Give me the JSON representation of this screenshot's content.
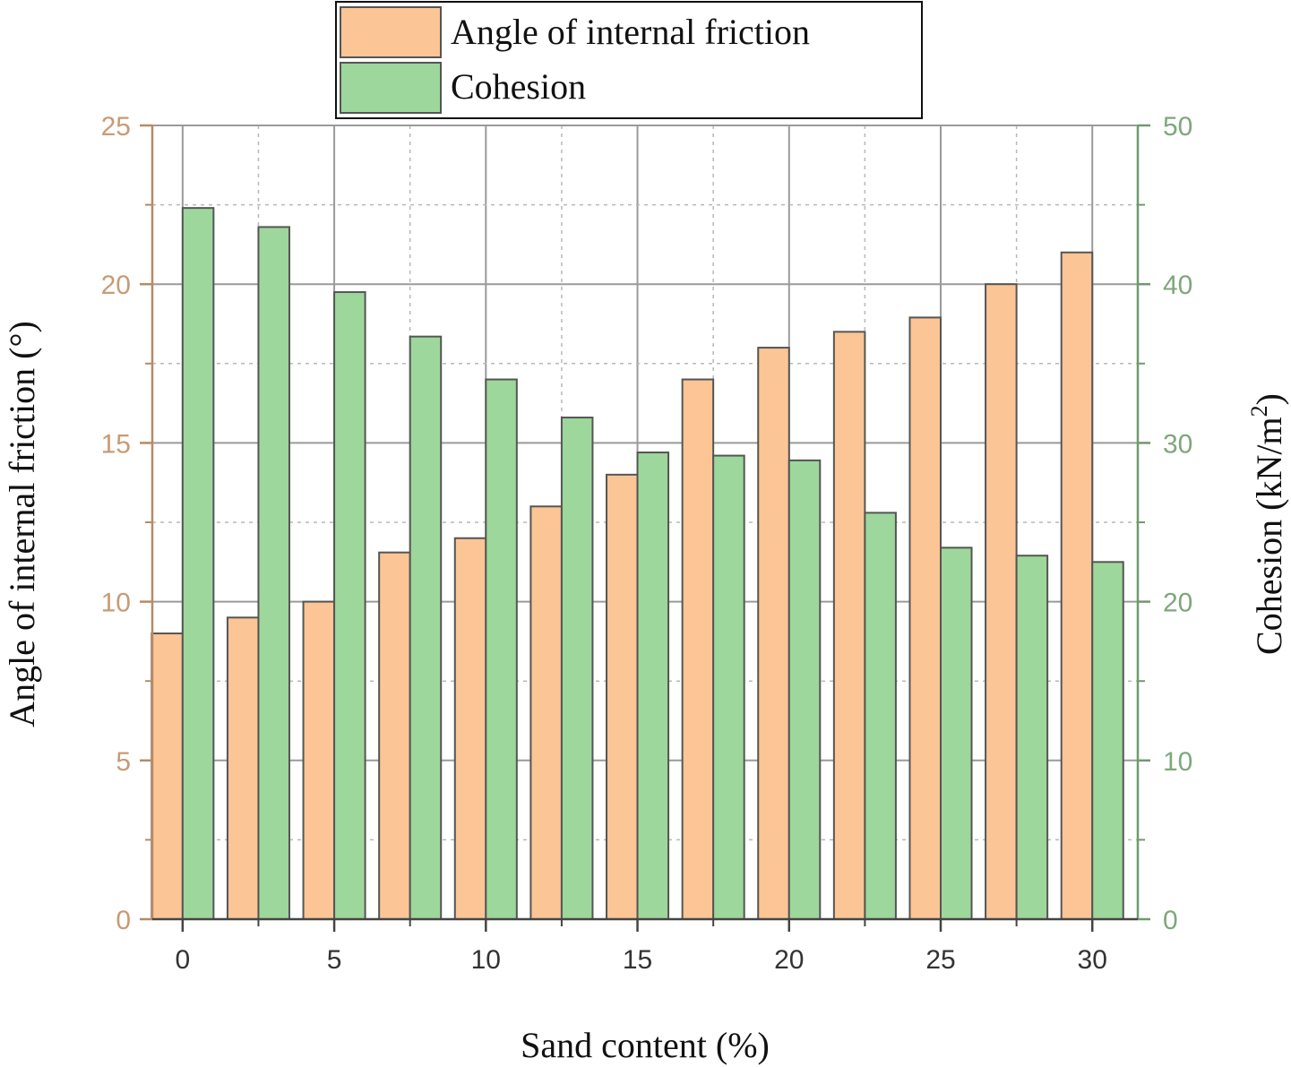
{
  "chart_data": {
    "type": "bar",
    "xlabel": "Sand content (%)",
    "ylabel_left": "Angle of  internal friction (°)",
    "ylabel_right": "Cohesion (kN/m",
    "ylabel_right_sup": "2",
    "ylabel_right_close": ")",
    "xlim": [
      -1,
      31.5
    ],
    "ylim_left": [
      0,
      25
    ],
    "ylim_right": [
      0,
      50
    ],
    "x_ticks": [
      0,
      5,
      10,
      15,
      20,
      25,
      30
    ],
    "y_ticks_left": [
      0,
      5,
      10,
      15,
      20,
      25
    ],
    "y_ticks_right": [
      0,
      10,
      20,
      30,
      40,
      50
    ],
    "grid": true,
    "legend_position": "top-center",
    "series": [
      {
        "name": "Angle of  internal friction",
        "axis": "left",
        "color": "#fbc595",
        "x": [
          0,
          2.5,
          5,
          7.5,
          10,
          12.5,
          15,
          17.5,
          20,
          22.5,
          25,
          27.5,
          30
        ],
        "values": [
          9,
          9.5,
          10,
          11.55,
          12,
          13,
          14,
          17,
          18,
          18.5,
          18.95,
          20,
          21
        ]
      },
      {
        "name": "Cohesion",
        "axis": "right",
        "color": "#9ed79b",
        "x": [
          0,
          2.5,
          5,
          7.5,
          10,
          12.5,
          15,
          17.5,
          20,
          22.5,
          25,
          27.5,
          30
        ],
        "values": [
          44.8,
          43.6,
          39.5,
          36.7,
          34,
          31.6,
          29.4,
          29.2,
          28.9,
          25.6,
          23.4,
          22.9,
          22.5
        ]
      }
    ]
  }
}
